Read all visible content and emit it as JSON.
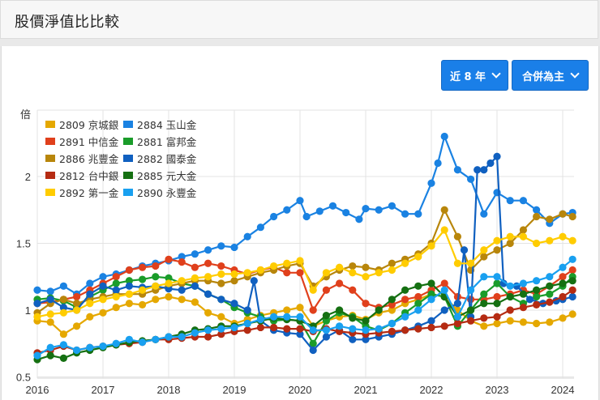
{
  "header": {
    "title": "股價淨值比比較"
  },
  "controls": {
    "range_label": "近 8 年",
    "mode_label": "合併為主",
    "chevron_icon": "chevron-down-icon"
  },
  "chart_data": {
    "type": "line",
    "title": "股價淨值比比較",
    "ylabel": "倍",
    "xlabel": "",
    "ylim": [
      0.5,
      2.5
    ],
    "yticks": [
      0.5,
      1,
      1.5,
      2
    ],
    "ytick_labels": [
      "0.5",
      "1",
      "1.5",
      "2"
    ],
    "xlim": [
      2016,
      2024.2
    ],
    "xticks": [
      2016,
      2017,
      2018,
      2019,
      2020,
      2021,
      2022,
      2023,
      2024
    ],
    "xtick_labels": [
      "2016",
      "2017",
      "2018",
      "2019",
      "2020",
      "2021",
      "2022",
      "2023",
      "2024"
    ],
    "grid": true,
    "legend_position": "top-left",
    "x_step_note": "points approx. bimonthly",
    "series": [
      {
        "name": "2809 京城銀",
        "color": "#e5a800",
        "x": [
          2016,
          2016.2,
          2016.4,
          2016.6,
          2016.8,
          2017,
          2017.2,
          2017.4,
          2017.6,
          2017.8,
          2018,
          2018.2,
          2018.4,
          2018.6,
          2018.8,
          2019,
          2019.2,
          2019.4,
          2019.6,
          2019.8,
          2020,
          2020.2,
          2020.4,
          2020.6,
          2020.8,
          2021,
          2021.2,
          2021.4,
          2021.6,
          2021.8,
          2022,
          2022.2,
          2022.4,
          2022.6,
          2022.8,
          2023,
          2023.2,
          2023.4,
          2023.6,
          2023.8,
          2024,
          2024.15
        ],
        "values": [
          0.92,
          0.91,
          0.82,
          0.88,
          0.95,
          0.98,
          1.02,
          1.05,
          1.04,
          1.08,
          1.1,
          1.08,
          1.06,
          0.98,
          0.95,
          0.9,
          0.93,
          0.96,
          0.98,
          1.0,
          1.02,
          0.88,
          0.92,
          0.95,
          0.96,
          0.93,
          0.98,
          1.0,
          1.05,
          1.08,
          1.12,
          1.1,
          1.0,
          0.92,
          0.88,
          0.9,
          0.92,
          0.91,
          0.9,
          0.91,
          0.94,
          0.97
        ]
      },
      {
        "name": "2884 玉山金",
        "color": "#1a82e2",
        "x": [
          2016,
          2016.2,
          2016.4,
          2016.6,
          2016.8,
          2017,
          2017.2,
          2017.4,
          2017.6,
          2017.8,
          2018,
          2018.2,
          2018.4,
          2018.6,
          2018.8,
          2019,
          2019.2,
          2019.4,
          2019.6,
          2019.8,
          2020,
          2020.1,
          2020.3,
          2020.5,
          2020.7,
          2020.9,
          2021,
          2021.2,
          2021.4,
          2021.6,
          2021.8,
          2022,
          2022.1,
          2022.2,
          2022.4,
          2022.6,
          2022.8,
          2023,
          2023.2,
          2023.4,
          2023.6,
          2023.8,
          2024,
          2024.15
        ],
        "values": [
          1.15,
          1.14,
          1.18,
          1.12,
          1.2,
          1.25,
          1.27,
          1.3,
          1.33,
          1.35,
          1.37,
          1.4,
          1.42,
          1.45,
          1.48,
          1.47,
          1.55,
          1.62,
          1.7,
          1.75,
          1.82,
          1.7,
          1.74,
          1.78,
          1.73,
          1.68,
          1.76,
          1.75,
          1.78,
          1.72,
          1.72,
          1.95,
          2.1,
          2.3,
          2.05,
          1.98,
          1.72,
          1.88,
          1.82,
          1.82,
          1.75,
          1.65,
          1.72,
          1.73
        ]
      },
      {
        "name": "2891 中信金",
        "color": "#e0401c",
        "x": [
          2016,
          2016.2,
          2016.4,
          2016.6,
          2016.8,
          2017,
          2017.2,
          2017.4,
          2017.6,
          2017.8,
          2018,
          2018.2,
          2018.4,
          2018.6,
          2018.8,
          2019,
          2019.2,
          2019.4,
          2019.6,
          2019.8,
          2020,
          2020.2,
          2020.4,
          2020.6,
          2020.8,
          2021,
          2021.2,
          2021.4,
          2021.6,
          2021.8,
          2022,
          2022.2,
          2022.4,
          2022.6,
          2022.8,
          2023,
          2023.2,
          2023.4,
          2023.6,
          2023.8,
          2024,
          2024.15
        ],
        "values": [
          1.05,
          1.06,
          1.08,
          1.1,
          1.15,
          1.2,
          1.25,
          1.3,
          1.32,
          1.33,
          1.38,
          1.36,
          1.32,
          1.35,
          1.33,
          1.3,
          1.27,
          1.3,
          1.32,
          1.28,
          1.28,
          1.0,
          1.15,
          1.2,
          1.15,
          1.05,
          1.02,
          1.04,
          1.08,
          1.1,
          1.15,
          1.2,
          1.1,
          1.08,
          1.08,
          1.1,
          1.12,
          1.15,
          1.12,
          1.18,
          1.25,
          1.3
        ]
      },
      {
        "name": "2881 富邦金",
        "color": "#1a9c2a",
        "x": [
          2016,
          2016.2,
          2016.4,
          2016.6,
          2016.8,
          2017,
          2017.2,
          2017.4,
          2017.6,
          2017.8,
          2018,
          2018.2,
          2018.4,
          2018.6,
          2018.8,
          2019,
          2019.2,
          2019.4,
          2019.6,
          2019.8,
          2020,
          2020.2,
          2020.4,
          2020.6,
          2020.8,
          2021,
          2021.2,
          2021.4,
          2021.6,
          2021.8,
          2022,
          2022.2,
          2022.4,
          2022.6,
          2022.8,
          2023,
          2023.2,
          2023.4,
          2023.6,
          2023.8,
          2024,
          2024.15
        ],
        "values": [
          1.08,
          1.09,
          1.07,
          1.02,
          1.1,
          1.15,
          1.2,
          1.22,
          1.23,
          1.25,
          1.24,
          1.2,
          1.18,
          1.12,
          1.08,
          1.02,
          0.98,
          0.95,
          0.92,
          0.93,
          0.92,
          0.75,
          0.92,
          0.98,
          0.95,
          0.88,
          0.85,
          0.9,
          0.98,
          1.05,
          1.12,
          1.1,
          0.88,
          1.0,
          1.12,
          1.2,
          1.1,
          1.05,
          1.1,
          1.12,
          1.18,
          1.25
        ]
      },
      {
        "name": "2886 兆豐金",
        "color": "#b8860b",
        "x": [
          2016,
          2016.2,
          2016.4,
          2016.6,
          2016.8,
          2017,
          2017.2,
          2017.4,
          2017.6,
          2017.8,
          2018,
          2018.2,
          2018.4,
          2018.6,
          2018.8,
          2019,
          2019.2,
          2019.4,
          2019.6,
          2019.8,
          2020,
          2020.2,
          2020.4,
          2020.6,
          2020.8,
          2021,
          2021.2,
          2021.4,
          2021.6,
          2021.8,
          2022,
          2022.2,
          2022.4,
          2022.6,
          2022.8,
          2023,
          2023.2,
          2023.4,
          2023.6,
          2023.8,
          2024,
          2024.15
        ],
        "values": [
          0.98,
          1.05,
          1.08,
          1.05,
          1.08,
          1.1,
          1.12,
          1.12,
          1.12,
          1.15,
          1.18,
          1.2,
          1.22,
          1.22,
          1.2,
          1.22,
          1.25,
          1.28,
          1.3,
          1.33,
          1.35,
          1.18,
          1.25,
          1.3,
          1.33,
          1.32,
          1.3,
          1.35,
          1.38,
          1.42,
          1.5,
          1.75,
          1.55,
          1.3,
          1.4,
          1.45,
          1.5,
          1.6,
          1.7,
          1.68,
          1.72,
          1.7
        ]
      },
      {
        "name": "2882 國泰金",
        "color": "#1060c0",
        "x": [
          2016,
          2016.2,
          2016.4,
          2016.6,
          2016.8,
          2017,
          2017.2,
          2017.4,
          2017.6,
          2017.8,
          2018,
          2018.2,
          2018.4,
          2018.6,
          2018.8,
          2019,
          2019.2,
          2019.3,
          2019.4,
          2019.6,
          2019.8,
          2020,
          2020.2,
          2020.4,
          2020.6,
          2020.8,
          2021,
          2021.2,
          2021.4,
          2021.6,
          2021.8,
          2022,
          2022.2,
          2022.4,
          2022.5,
          2022.6,
          2022.7,
          2022.8,
          2022.9,
          2023,
          2023.1,
          2023.3,
          2023.5,
          2023.7,
          2023.9,
          2024,
          2024.15
        ],
        "values": [
          1.05,
          1.08,
          1.02,
          1.0,
          1.12,
          1.18,
          1.15,
          1.18,
          1.17,
          1.18,
          1.16,
          1.15,
          1.18,
          1.12,
          1.08,
          1.05,
          1.0,
          1.22,
          0.92,
          0.85,
          0.83,
          0.82,
          0.7,
          0.8,
          0.85,
          0.78,
          0.78,
          0.8,
          0.82,
          0.85,
          0.88,
          0.92,
          1.0,
          1.05,
          1.45,
          0.95,
          2.05,
          2.05,
          2.1,
          2.15,
          1.2,
          1.18,
          1.08,
          1.05,
          1.07,
          1.08,
          1.1
        ]
      },
      {
        "name": "2812 台中銀",
        "color": "#b52b12",
        "x": [
          2016,
          2016.2,
          2016.4,
          2016.6,
          2016.8,
          2017,
          2017.2,
          2017.4,
          2017.6,
          2017.8,
          2018,
          2018.2,
          2018.4,
          2018.6,
          2018.8,
          2019,
          2019.2,
          2019.4,
          2019.6,
          2019.8,
          2020,
          2020.2,
          2020.4,
          2020.6,
          2020.8,
          2021,
          2021.2,
          2021.4,
          2021.6,
          2021.8,
          2022,
          2022.2,
          2022.4,
          2022.6,
          2022.8,
          2023,
          2023.2,
          2023.4,
          2023.6,
          2023.8,
          2024,
          2024.15
        ],
        "values": [
          0.68,
          0.7,
          0.73,
          0.7,
          0.72,
          0.73,
          0.74,
          0.75,
          0.76,
          0.78,
          0.78,
          0.79,
          0.8,
          0.8,
          0.82,
          0.84,
          0.85,
          0.87,
          0.87,
          0.86,
          0.86,
          0.84,
          0.86,
          0.84,
          0.83,
          0.82,
          0.83,
          0.84,
          0.85,
          0.86,
          0.87,
          0.88,
          0.9,
          0.92,
          0.94,
          0.95,
          1.0,
          1.02,
          1.04,
          1.06,
          1.1,
          1.15
        ]
      },
      {
        "name": "2885 元大金",
        "color": "#157012",
        "x": [
          2016,
          2016.2,
          2016.4,
          2016.6,
          2016.8,
          2017,
          2017.2,
          2017.4,
          2017.6,
          2017.8,
          2018,
          2018.2,
          2018.4,
          2018.6,
          2018.8,
          2019,
          2019.2,
          2019.4,
          2019.6,
          2019.8,
          2020,
          2020.2,
          2020.4,
          2020.6,
          2020.8,
          2021,
          2021.2,
          2021.4,
          2021.6,
          2021.8,
          2022,
          2022.2,
          2022.4,
          2022.6,
          2022.8,
          2023,
          2023.2,
          2023.4,
          2023.6,
          2023.8,
          2024,
          2024.15
        ],
        "values": [
          0.63,
          0.66,
          0.64,
          0.68,
          0.7,
          0.72,
          0.74,
          0.76,
          0.77,
          0.78,
          0.8,
          0.82,
          0.85,
          0.86,
          0.88,
          0.88,
          0.9,
          0.92,
          0.94,
          0.93,
          0.92,
          0.88,
          0.96,
          1.0,
          0.94,
          0.92,
          1.0,
          1.08,
          1.15,
          1.18,
          1.2,
          1.1,
          0.95,
          1.0,
          1.05,
          1.05,
          1.1,
          1.12,
          1.15,
          1.18,
          1.2,
          1.22
        ]
      },
      {
        "name": "2892 第一金",
        "color": "#ffcc00",
        "x": [
          2016,
          2016.2,
          2016.4,
          2016.6,
          2016.8,
          2017,
          2017.2,
          2017.4,
          2017.6,
          2017.8,
          2018,
          2018.2,
          2018.4,
          2018.6,
          2018.8,
          2019,
          2019.2,
          2019.4,
          2019.6,
          2019.8,
          2020,
          2020.2,
          2020.4,
          2020.6,
          2020.8,
          2021,
          2021.2,
          2021.4,
          2021.6,
          2021.8,
          2022,
          2022.2,
          2022.4,
          2022.6,
          2022.8,
          2023,
          2023.2,
          2023.4,
          2023.6,
          2023.8,
          2024,
          2024.15
        ],
        "values": [
          0.95,
          0.97,
          0.98,
          1.0,
          1.05,
          1.08,
          1.1,
          1.12,
          1.15,
          1.18,
          1.2,
          1.22,
          1.24,
          1.25,
          1.27,
          1.27,
          1.28,
          1.3,
          1.33,
          1.35,
          1.37,
          1.15,
          1.28,
          1.32,
          1.28,
          1.25,
          1.28,
          1.3,
          1.35,
          1.4,
          1.48,
          1.6,
          1.35,
          1.35,
          1.45,
          1.52,
          1.55,
          1.55,
          1.5,
          1.52,
          1.55,
          1.52
        ]
      },
      {
        "name": "2890 永豐金",
        "color": "#19a0f0",
        "x": [
          2016,
          2016.2,
          2016.4,
          2016.6,
          2016.8,
          2017,
          2017.2,
          2017.4,
          2017.6,
          2017.8,
          2018,
          2018.2,
          2018.4,
          2018.6,
          2018.8,
          2019,
          2019.2,
          2019.4,
          2019.6,
          2019.8,
          2020,
          2020.2,
          2020.4,
          2020.6,
          2020.8,
          2021,
          2021.2,
          2021.4,
          2021.6,
          2021.8,
          2022,
          2022.2,
          2022.4,
          2022.6,
          2022.8,
          2023,
          2023.2,
          2023.4,
          2023.6,
          2023.8,
          2024,
          2024.15
        ],
        "values": [
          0.66,
          0.72,
          0.74,
          0.7,
          0.72,
          0.73,
          0.75,
          0.78,
          0.76,
          0.78,
          0.8,
          0.8,
          0.83,
          0.85,
          0.86,
          0.87,
          0.9,
          0.93,
          0.95,
          0.95,
          0.95,
          0.85,
          0.85,
          0.88,
          0.86,
          0.85,
          0.86,
          0.9,
          0.95,
          1.0,
          1.08,
          1.15,
          0.95,
          1.15,
          1.25,
          1.25,
          1.18,
          1.2,
          1.22,
          1.25,
          1.32,
          1.38
        ]
      }
    ]
  }
}
